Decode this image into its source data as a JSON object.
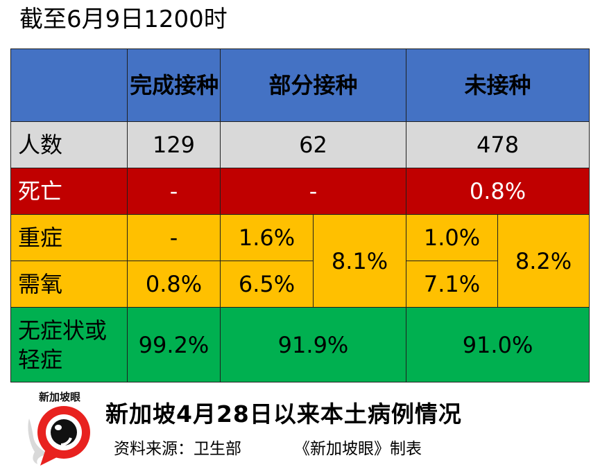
{
  "title": "截至6月9日1200时",
  "table": {
    "headers": {
      "corner": "",
      "completed": "完成接种",
      "partial": "部分接种",
      "unvaccinated": "未接种"
    },
    "rows": {
      "people": {
        "label": "人数",
        "completed": "129",
        "partial": "62",
        "unvaccinated": "478"
      },
      "death": {
        "label": "死亡",
        "completed": "-",
        "partial": "-",
        "unvaccinated": "0.8%"
      },
      "severe": {
        "label": "重症",
        "completed": "-",
        "partial": "1.6%",
        "unvaccinated": "1.0%"
      },
      "oxygen": {
        "label": "需氧",
        "completed": "0.8%",
        "partial": "6.5%",
        "unvaccinated": "7.1%"
      },
      "combined": {
        "partial": "8.1%",
        "unvaccinated": "8.2%"
      },
      "asymptomatic": {
        "label": "无症状或轻症",
        "completed": "99.2%",
        "partial": "91.9%",
        "unvaccinated": "91.0%"
      }
    }
  },
  "footer": {
    "logo_text": "新加坡眼",
    "logo_icon": "eye-speech-bubble-icon",
    "title": "新加坡4月28日以来本土病例情况",
    "source": "资料来源：卫生部",
    "maker": "《新加坡眼》制表"
  },
  "colors": {
    "header": "#4472c4",
    "people": "#d9d9d9",
    "death": "#c00000",
    "severe_oxygen": "#ffc000",
    "asymptomatic": "#00b050"
  }
}
